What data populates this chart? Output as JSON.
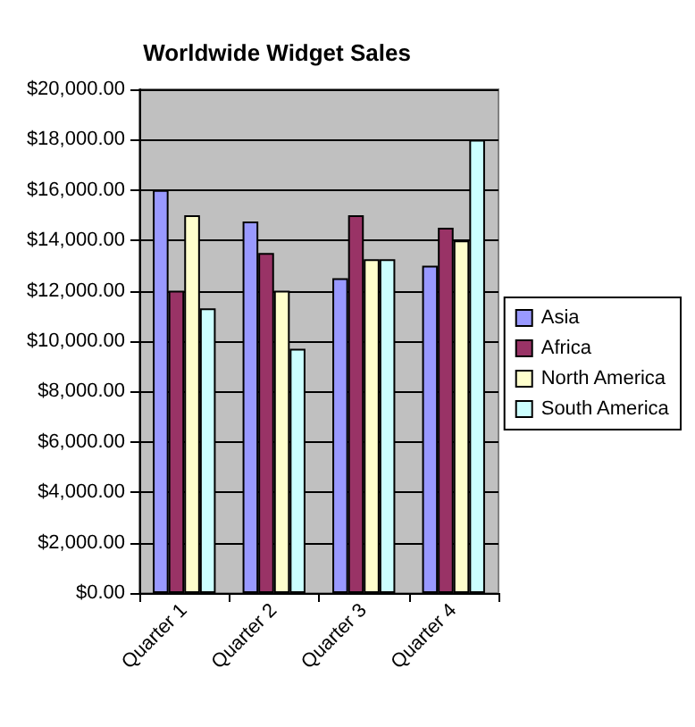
{
  "chart_data": {
    "type": "bar",
    "title": "Worldwide Widget Sales",
    "categories": [
      "Quarter 1",
      "Quarter 2",
      "Quarter 3",
      "Quarter 4"
    ],
    "series": [
      {
        "name": "Asia",
        "color": "#9999ff",
        "values": [
          16000,
          14750,
          12500,
          13000
        ]
      },
      {
        "name": "Africa",
        "color": "#993366",
        "values": [
          12000,
          13500,
          15000,
          14500
        ]
      },
      {
        "name": "North America",
        "color": "#ffffcc",
        "values": [
          15000,
          12000,
          13250,
          14000
        ]
      },
      {
        "name": "South America",
        "color": "#ccffff",
        "values": [
          11300,
          9700,
          13250,
          18000
        ]
      }
    ],
    "ylim": [
      0,
      20000
    ],
    "yticks": [
      {
        "value": 0,
        "label": "$0.00"
      },
      {
        "value": 2000,
        "label": "$2,000.00"
      },
      {
        "value": 4000,
        "label": "$4,000.00"
      },
      {
        "value": 6000,
        "label": "$6,000.00"
      },
      {
        "value": 8000,
        "label": "$8,000.00"
      },
      {
        "value": 10000,
        "label": "$10,000.00"
      },
      {
        "value": 12000,
        "label": "$12,000.00"
      },
      {
        "value": 14000,
        "label": "$14,000.00"
      },
      {
        "value": 16000,
        "label": "$16,000.00"
      },
      {
        "value": 18000,
        "label": "$18,000.00"
      },
      {
        "value": 20000,
        "label": "$20,000.00"
      }
    ],
    "grid": "y",
    "legend": "right"
  }
}
